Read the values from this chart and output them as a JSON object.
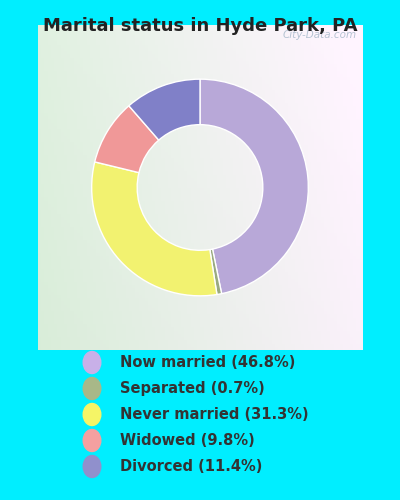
{
  "title": "Marital status in Hyde Park, PA",
  "title_fontsize": 13,
  "title_color": "#222222",
  "bg_cyan": "#00EEFF",
  "chart_bg_color_tl": "#d0e8d0",
  "chart_bg_color_br": "#f0f8f0",
  "wedge_colors": [
    "#b8a8d8",
    "#9aaa80",
    "#f2f270",
    "#f09898",
    "#8080c8"
  ],
  "values": [
    46.8,
    0.7,
    31.3,
    9.8,
    11.4
  ],
  "labels": [
    "Now married (46.8%)",
    "Separated (0.7%)",
    "Never married (31.3%)",
    "Widowed (9.8%)",
    "Divorced (11.4%)"
  ],
  "legend_marker_colors": [
    "#c8b0e8",
    "#a8b888",
    "#f5f566",
    "#f4a0a0",
    "#9090cc"
  ],
  "legend_text_color": "#333333",
  "legend_fontsize": 10.5,
  "start_angle": 90,
  "figsize": [
    4.0,
    5.0
  ],
  "dpi": 100
}
